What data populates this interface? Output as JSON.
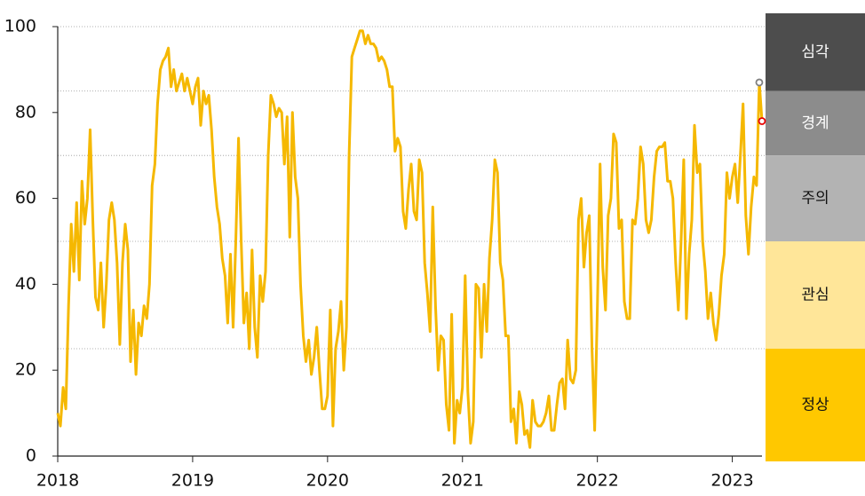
{
  "chart_data": {
    "type": "line",
    "color": "#f5b800",
    "xlim": [
      2018,
      2023.22
    ],
    "xticks": [
      2018,
      2019,
      2020,
      2021,
      2022,
      2023
    ],
    "ylim": [
      0,
      100
    ],
    "yticks": [
      0,
      20,
      40,
      60,
      80,
      100
    ],
    "x": [
      2018,
      2018.02,
      2018.04,
      2018.06,
      2018.08,
      2018.1,
      2018.12,
      2018.14,
      2018.16,
      2018.18,
      2018.2,
      2018.22,
      2018.24,
      2018.26,
      2018.28,
      2018.3,
      2018.32,
      2018.34,
      2018.36,
      2018.38,
      2018.4,
      2018.42,
      2018.44,
      2018.46,
      2018.48,
      2018.5,
      2018.52,
      2018.54,
      2018.56,
      2018.58,
      2018.6,
      2018.62,
      2018.64,
      2018.66,
      2018.68,
      2018.7,
      2018.72,
      2018.74,
      2018.76,
      2018.78,
      2018.8,
      2018.82,
      2018.84,
      2018.86,
      2018.88,
      2018.9,
      2018.92,
      2018.94,
      2018.96,
      2018.98,
      2019,
      2019.02,
      2019.04,
      2019.06,
      2019.08,
      2019.1,
      2019.12,
      2019.14,
      2019.16,
      2019.18,
      2019.2,
      2019.22,
      2019.24,
      2019.26,
      2019.28,
      2019.3,
      2019.32,
      2019.34,
      2019.36,
      2019.38,
      2019.4,
      2019.42,
      2019.44,
      2019.46,
      2019.48,
      2019.5,
      2019.52,
      2019.54,
      2019.56,
      2019.58,
      2019.6,
      2019.62,
      2019.64,
      2019.66,
      2019.68,
      2019.7,
      2019.72,
      2019.74,
      2019.76,
      2019.78,
      2019.8,
      2019.82,
      2019.84,
      2019.86,
      2019.88,
      2019.9,
      2019.92,
      2019.94,
      2019.96,
      2019.98,
      2020,
      2020.02,
      2020.04,
      2020.06,
      2020.08,
      2020.1,
      2020.12,
      2020.14,
      2020.16,
      2020.18,
      2020.2,
      2020.22,
      2020.24,
      2020.26,
      2020.28,
      2020.3,
      2020.32,
      2020.34,
      2020.36,
      2020.38,
      2020.4,
      2020.42,
      2020.44,
      2020.46,
      2020.48,
      2020.5,
      2020.52,
      2020.54,
      2020.56,
      2020.58,
      2020.6,
      2020.62,
      2020.64,
      2020.66,
      2020.68,
      2020.7,
      2020.72,
      2020.74,
      2020.76,
      2020.78,
      2020.8,
      2020.82,
      2020.84,
      2020.86,
      2020.88,
      2020.9,
      2020.92,
      2020.94,
      2020.96,
      2020.98,
      2021,
      2021.02,
      2021.04,
      2021.06,
      2021.08,
      2021.1,
      2021.12,
      2021.14,
      2021.16,
      2021.18,
      2021.2,
      2021.22,
      2021.24,
      2021.26,
      2021.28,
      2021.3,
      2021.32,
      2021.34,
      2021.36,
      2021.38,
      2021.4,
      2021.42,
      2021.44,
      2021.46,
      2021.48,
      2021.5,
      2021.52,
      2021.54,
      2021.56,
      2021.58,
      2021.6,
      2021.62,
      2021.64,
      2021.66,
      2021.68,
      2021.7,
      2021.72,
      2021.74,
      2021.76,
      2021.78,
      2021.8,
      2021.82,
      2021.84,
      2021.86,
      2021.88,
      2021.9,
      2021.92,
      2021.94,
      2021.96,
      2021.98,
      2022,
      2022.02,
      2022.04,
      2022.06,
      2022.08,
      2022.1,
      2022.12,
      2022.14,
      2022.16,
      2022.18,
      2022.2,
      2022.22,
      2022.24,
      2022.26,
      2022.28,
      2022.3,
      2022.32,
      2022.34,
      2022.36,
      2022.38,
      2022.4,
      2022.42,
      2022.44,
      2022.46,
      2022.48,
      2022.5,
      2022.52,
      2022.54,
      2022.56,
      2022.58,
      2022.6,
      2022.62,
      2022.64,
      2022.66,
      2022.68,
      2022.7,
      2022.72,
      2022.74,
      2022.76,
      2022.78,
      2022.8,
      2022.82,
      2022.84,
      2022.86,
      2022.88,
      2022.9,
      2022.92,
      2022.94,
      2022.96,
      2022.98,
      2023,
      2023.02,
      2023.04,
      2023.06,
      2023.08,
      2023.1,
      2023.12,
      2023.14,
      2023.16,
      2023.18,
      2023.2,
      2023.22
    ],
    "values": [
      10,
      7,
      16,
      11,
      35,
      54,
      43,
      59,
      41,
      64,
      54,
      60,
      76,
      55,
      37,
      34,
      45,
      30,
      40,
      55,
      59,
      55,
      45,
      26,
      45,
      54,
      48,
      22,
      34,
      19,
      31,
      28,
      35,
      32,
      40,
      63,
      68,
      82,
      90,
      92,
      93,
      95,
      86,
      90,
      85,
      87,
      89,
      85,
      88,
      85,
      82,
      86,
      88,
      77,
      85,
      82,
      84,
      76,
      65,
      58,
      54,
      46,
      42,
      31,
      47,
      30,
      50,
      74,
      50,
      31,
      38,
      25,
      48,
      30,
      23,
      42,
      36,
      43,
      70,
      84,
      82,
      79,
      81,
      80,
      68,
      79,
      51,
      80,
      65,
      60,
      40,
      28,
      22,
      27,
      19,
      23,
      30,
      20,
      11,
      11,
      14,
      34,
      7,
      25,
      29,
      36,
      20,
      30,
      70,
      93,
      95,
      97,
      99,
      99,
      96,
      98,
      96,
      96,
      95,
      92,
      93,
      92,
      90,
      86,
      86,
      71,
      74,
      72,
      57,
      53,
      62,
      68,
      57,
      55,
      69,
      66,
      45,
      38,
      29,
      58,
      35,
      20,
      28,
      27,
      12,
      6,
      33,
      3,
      13,
      10,
      16,
      42,
      15,
      3,
      8,
      40,
      39,
      23,
      40,
      29,
      46,
      55,
      69,
      66,
      45,
      41,
      28,
      28,
      8,
      11,
      3,
      15,
      12,
      5,
      6,
      2,
      13,
      8,
      7,
      7,
      8,
      10,
      14,
      6,
      6,
      12,
      17,
      18,
      11,
      27,
      18,
      17,
      20,
      55,
      60,
      44,
      52,
      56,
      25,
      6,
      35,
      68,
      44,
      34,
      56,
      60,
      75,
      73,
      53,
      55,
      36,
      32,
      32,
      55,
      54,
      60,
      72,
      68,
      55,
      52,
      55,
      65,
      71,
      72,
      72,
      73,
      64,
      64,
      60,
      45,
      34,
      50,
      69,
      32,
      47,
      55,
      77,
      66,
      68,
      50,
      43,
      32,
      38,
      31,
      27,
      33,
      42,
      47,
      66,
      60,
      65,
      68,
      59,
      70,
      82,
      56,
      47,
      58,
      65,
      63,
      87,
      78
    ],
    "end_markers": [
      "#808080",
      "#e60000"
    ],
    "zones": [
      {
        "label": "심각",
        "from": 85,
        "to": 100,
        "color": "#4d4d4d",
        "text_color": "#ffffff"
      },
      {
        "label": "경계",
        "from": 70,
        "to": 85,
        "color": "#8c8c8c",
        "text_color": "#ffffff"
      },
      {
        "label": "주의",
        "from": 50,
        "to": 70,
        "color": "#b3b3b3",
        "text_color": "#111111"
      },
      {
        "label": "관심",
        "from": 25,
        "to": 50,
        "color": "#ffe699",
        "text_color": "#111111"
      },
      {
        "label": "정상",
        "from": 0,
        "to": 25,
        "color": "#ffc800",
        "text_color": "#111111"
      }
    ]
  }
}
